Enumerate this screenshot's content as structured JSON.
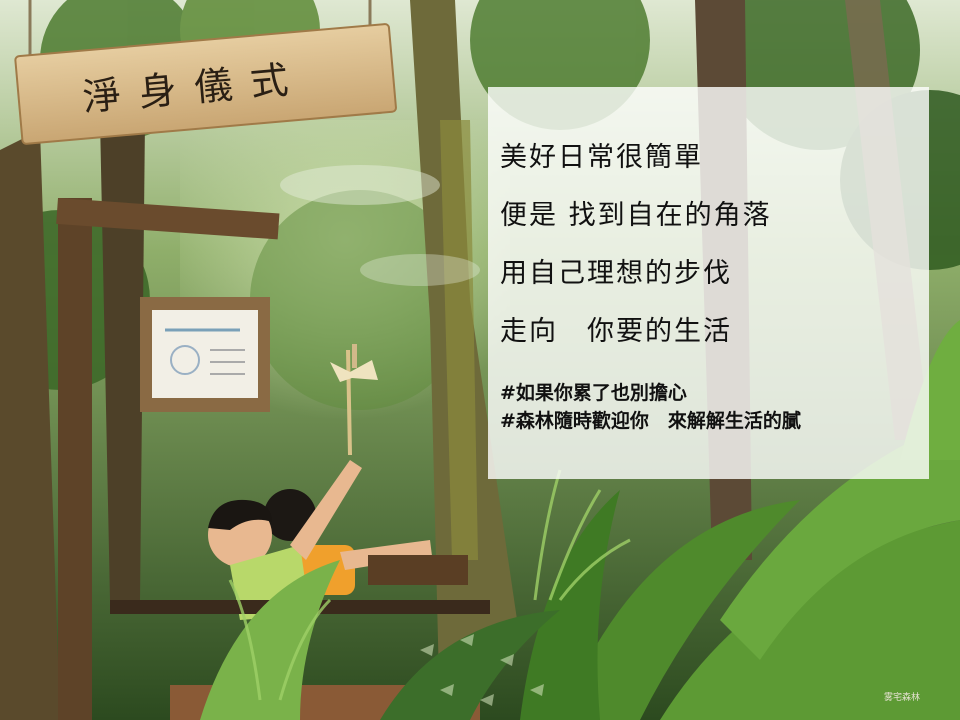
{
  "scene": {
    "sign_text": "淨身儀式",
    "watermark_text": "雾宅森林"
  },
  "overlay": {
    "lines": [
      "美好日常很簡單",
      "便是 找到自在的角落",
      "用自己理想的步伐",
      "走向　你要的生活"
    ],
    "hashtags": [
      "#如果你累了也別擔心",
      "#森林隨時歡迎你　來解解生活的膩"
    ]
  },
  "colors": {
    "overlay_bg": "#ffffff",
    "text": "#111111",
    "foliage": "#3f6a2a"
  }
}
